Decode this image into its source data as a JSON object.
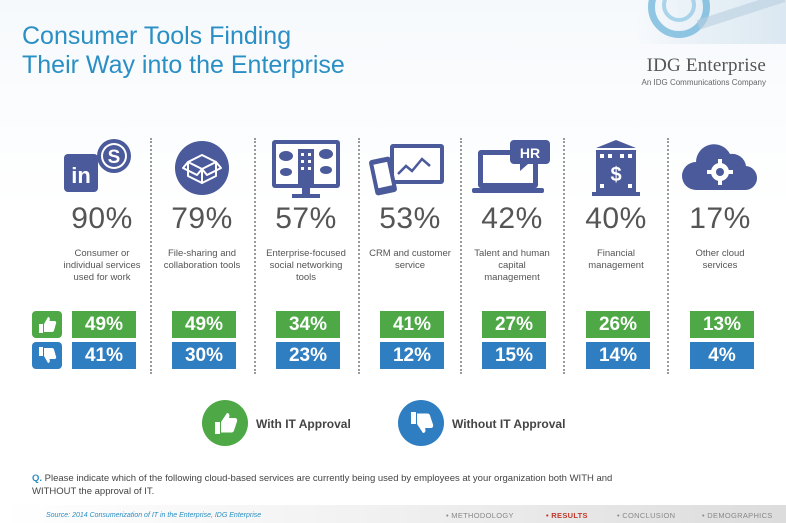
{
  "title": {
    "line1": "Consumer Tools Finding",
    "line2": "Their Way into the Enterprise"
  },
  "brand": {
    "name": "IDG Enterprise",
    "tagline": "An IDG Communications Company"
  },
  "columns": [
    {
      "icon": "linkedin-skype-icon",
      "pct": "90%",
      "desc": "Consumer or individual services used for work",
      "with_it": "49%",
      "without_it": "41%"
    },
    {
      "icon": "box-file-sharing-icon",
      "pct": "79%",
      "desc": "File-sharing and collaboration tools",
      "with_it": "49%",
      "without_it": "30%"
    },
    {
      "icon": "social-network-monitor-icon",
      "pct": "57%",
      "desc": "Enterprise-focused social networking tools",
      "with_it": "34%",
      "without_it": "23%"
    },
    {
      "icon": "crm-devices-icon",
      "pct": "53%",
      "desc": "CRM and customer service",
      "with_it": "41%",
      "without_it": "12%"
    },
    {
      "icon": "hr-laptop-icon",
      "pct": "42%",
      "desc": "Talent and human capital management",
      "with_it": "27%",
      "without_it": "15%"
    },
    {
      "icon": "financial-building-icon",
      "pct": "40%",
      "desc": "Financial management",
      "with_it": "26%",
      "without_it": "14%"
    },
    {
      "icon": "cloud-gear-icon",
      "pct": "17%",
      "desc": "Other cloud services",
      "with_it": "13%",
      "without_it": "4%"
    }
  ],
  "legend": {
    "with": "With IT Approval",
    "without": "Without IT Approval"
  },
  "question": {
    "label": "Q.",
    "text": "Please indicate which of the following cloud-based services are currently being used by employees at your organization both WITH and WITHOUT the approval of IT."
  },
  "footer": {
    "source": "Source: 2014 Consumerization of IT in the Enterprise, IDG Enterprise",
    "nav": [
      "• METHODOLOGY",
      "• RESULTS",
      "• CONCLUSION",
      "• DEMOGRAPHICS"
    ],
    "active_nav": "• RESULTS"
  },
  "colors": {
    "title": "#2a8fc4",
    "icon": "#4a5a9a",
    "with": "#4da845",
    "without": "#2f7ec1"
  }
}
